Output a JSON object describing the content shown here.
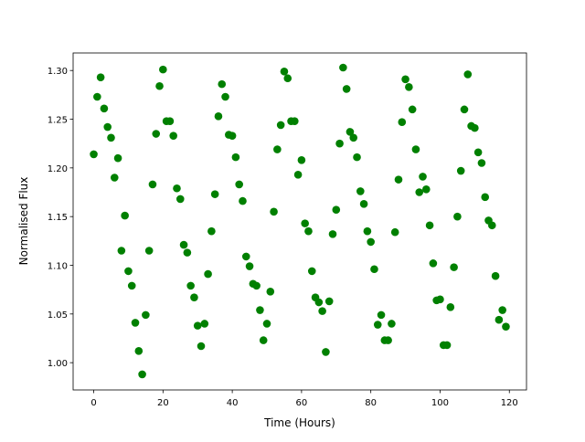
{
  "chart_data": {
    "type": "scatter",
    "xlabel": "Time (Hours)",
    "ylabel": "Normalised Flux",
    "color": "#008000",
    "x": [
      0,
      1,
      2,
      3,
      4,
      5,
      6,
      7,
      8,
      9,
      10,
      11,
      12,
      13,
      14,
      15,
      16,
      17,
      18,
      19,
      20,
      21,
      22,
      23,
      24,
      25,
      26,
      27,
      28,
      29,
      30,
      31,
      32,
      33,
      34,
      35,
      36,
      37,
      38,
      39,
      40,
      41,
      42,
      43,
      44,
      45,
      46,
      47,
      48,
      49,
      50,
      51,
      52,
      53,
      54,
      55,
      56,
      57,
      58,
      59,
      60,
      61,
      62,
      63,
      64,
      65,
      66,
      67,
      68,
      69,
      70,
      71,
      72,
      73,
      74,
      75,
      76,
      77,
      78,
      79,
      80,
      81,
      82,
      83,
      84,
      85,
      86,
      87,
      88,
      89,
      90,
      91,
      92,
      93,
      94,
      95,
      96,
      97,
      98,
      99,
      100,
      101,
      102,
      103,
      104,
      105,
      106,
      107,
      108,
      109,
      110,
      111,
      112,
      113,
      114,
      115,
      116,
      117,
      118,
      119
    ],
    "y": [
      1.214,
      1.273,
      1.293,
      1.261,
      1.242,
      1.231,
      1.19,
      1.21,
      1.115,
      1.151,
      1.094,
      1.079,
      1.041,
      1.012,
      0.988,
      1.049,
      1.115,
      1.183,
      1.235,
      1.284,
      1.301,
      1.248,
      1.248,
      1.233,
      1.179,
      1.168,
      1.121,
      1.113,
      1.079,
      1.067,
      1.038,
      1.017,
      1.04,
      1.091,
      1.135,
      1.173,
      1.253,
      1.286,
      1.273,
      1.234,
      1.233,
      1.211,
      1.183,
      1.166,
      1.109,
      1.099,
      1.081,
      1.079,
      1.054,
      1.023,
      1.04,
      1.073,
      1.155,
      1.219,
      1.244,
      1.299,
      1.292,
      1.248,
      1.248,
      1.193,
      1.208,
      1.143,
      1.135,
      1.094,
      1.067,
      1.062,
      1.053,
      1.011,
      1.063,
      1.132,
      1.157,
      1.225,
      1.303,
      1.281,
      1.237,
      1.231,
      1.211,
      1.176,
      1.163,
      1.135,
      1.124,
      1.096,
      1.039,
      1.049,
      1.023,
      1.023,
      1.04,
      1.134,
      1.188,
      1.247,
      1.291,
      1.283,
      1.26,
      1.219,
      1.175,
      1.191,
      1.178,
      1.141,
      1.102,
      1.064,
      1.065,
      1.018,
      1.018,
      1.057,
      1.098,
      1.15,
      1.197,
      1.26,
      1.296,
      1.243,
      1.241,
      1.216,
      1.205,
      1.17,
      1.146,
      1.141,
      1.089,
      1.044,
      1.054,
      1.037
    ],
    "xlim": [
      -5.95,
      124.95
    ],
    "ylim": [
      0.972,
      1.318
    ],
    "xticks": [
      0,
      20,
      40,
      60,
      80,
      100,
      120
    ],
    "yticks": [
      {
        "value": 1.0,
        "label": "1.00"
      },
      {
        "value": 1.05,
        "label": "1.05"
      },
      {
        "value": 1.1,
        "label": "1.10"
      },
      {
        "value": 1.15,
        "label": "1.15"
      },
      {
        "value": 1.2,
        "label": "1.20"
      },
      {
        "value": 1.25,
        "label": "1.25"
      },
      {
        "value": 1.3,
        "label": "1.30"
      }
    ]
  }
}
